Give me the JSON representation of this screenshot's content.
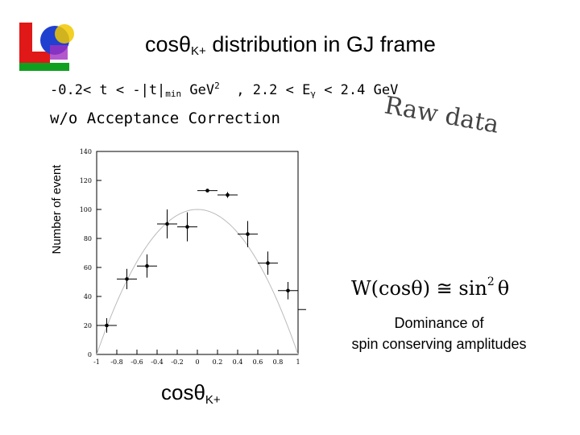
{
  "title": {
    "main": "cosθ",
    "sub": "K+",
    "tail": " distribution in GJ frame"
  },
  "cuts": {
    "t_part": "-0.2< t < -|t|",
    "t_sub": "min",
    "t_unit": " GeV",
    "t_exp": "2",
    "e_part": "  , 2.2 < E",
    "e_sub": "γ",
    "e_tail": " < 2.4 GeV"
  },
  "note": "w/o Acceptance Correction",
  "raw_label": "Raw data",
  "formula": {
    "lhs": "W(cosθ) ≅ sin",
    "exp": "2",
    "rhs": "θ"
  },
  "dominance": {
    "line1": "Dominance of",
    "line2": "spin conserving amplitudes"
  },
  "x_title": {
    "main": "cosθ",
    "sub": "K+"
  },
  "colors": {
    "logo_red": "#e01818",
    "logo_blue": "#2040d0",
    "logo_green": "#10a020",
    "logo_yellow": "#f0c800",
    "logo_purple": "#a030c0"
  },
  "chart_data": {
    "type": "scatter",
    "ylabel": "Number of event",
    "xlabel": "",
    "xlim": [
      -1,
      1
    ],
    "ylim": [
      0,
      140
    ],
    "x_ticks": [
      -1,
      -0.8,
      -0.6,
      -0.4,
      -0.2,
      0,
      0.2,
      0.4,
      0.6,
      0.8,
      1
    ],
    "y_ticks": [
      0,
      20,
      40,
      60,
      80,
      100,
      120,
      140
    ],
    "points": [
      {
        "x": -0.9,
        "y": 20,
        "yerr": 5
      },
      {
        "x": -0.7,
        "y": 52,
        "yerr": 7
      },
      {
        "x": -0.5,
        "y": 61,
        "yerr": 8
      },
      {
        "x": -0.3,
        "y": 90,
        "yerr": 10
      },
      {
        "x": -0.1,
        "y": 88,
        "yerr": 10
      },
      {
        "x": 0.1,
        "y": 113,
        "yerr": 0
      },
      {
        "x": 0.3,
        "y": 110,
        "yerr": 2
      },
      {
        "x": 0.5,
        "y": 83,
        "yerr": 9
      },
      {
        "x": 0.7,
        "y": 63,
        "yerr": 8
      },
      {
        "x": 0.9,
        "y": 44,
        "yerr": 6
      },
      {
        "x": 1.1,
        "y": 31,
        "yerr": 5
      }
    ],
    "fit": {
      "type": "sin2",
      "amplitude": 100
    }
  }
}
